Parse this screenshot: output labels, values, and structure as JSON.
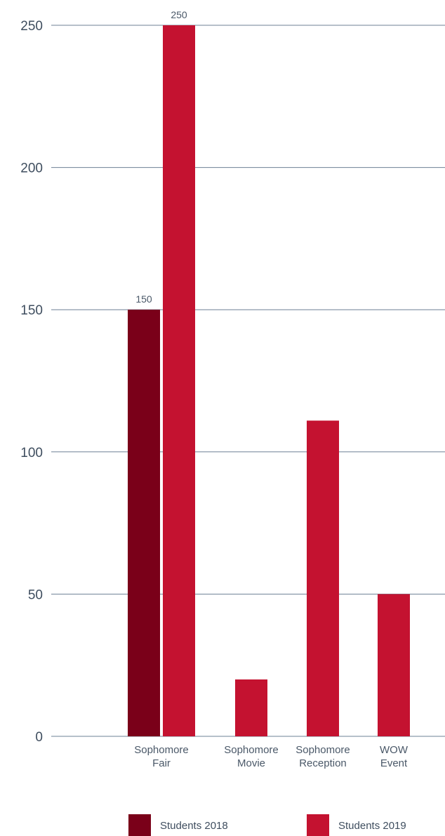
{
  "chart_data": {
    "type": "bar",
    "title": "",
    "xlabel": "",
    "ylabel": "",
    "ylim": [
      0,
      250
    ],
    "yticks": [
      0,
      50,
      100,
      150,
      200,
      250
    ],
    "grid": true,
    "legend_position": "bottom",
    "categories": [
      [
        "Sophomore",
        "Fair"
      ],
      [
        "Sophomore",
        "Movie"
      ],
      [
        "Sophomore",
        "Reception"
      ],
      [
        "WOW",
        "Event"
      ]
    ],
    "series": [
      {
        "name": "Students 2018",
        "color": "#7a0019",
        "values": [
          150,
          null,
          null,
          null
        ]
      },
      {
        "name": "Students 2019",
        "color": "#c41230",
        "values": [
          250,
          20,
          111,
          50
        ]
      }
    ],
    "data_labels": [
      {
        "series": 0,
        "category": 0,
        "text": "150"
      },
      {
        "series": 1,
        "category": 0,
        "text": "250"
      }
    ]
  }
}
